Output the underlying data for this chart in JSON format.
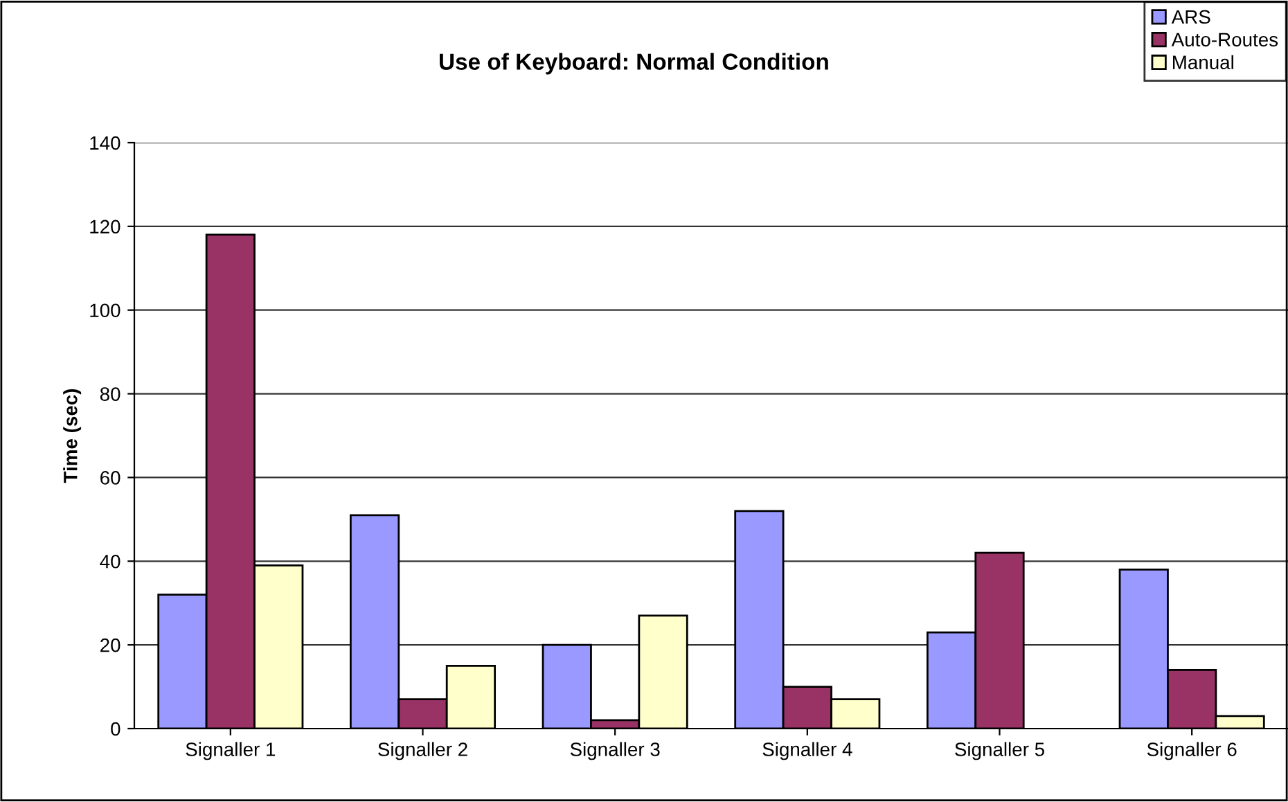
{
  "chart_data": {
    "type": "bar",
    "title": "Use of Keyboard: Normal Condition",
    "ylabel": "Time (sec)",
    "categories": [
      "Signaller 1",
      "Signaller 2",
      "Signaller 3",
      "Signaller 4",
      "Signaller 5",
      "Signaller 6"
    ],
    "series": [
      {
        "name": "ARS",
        "color": "#9999ff",
        "values": [
          32,
          51,
          20,
          52,
          23,
          38
        ]
      },
      {
        "name": "Auto-Routes",
        "color": "#993366",
        "values": [
          118,
          7,
          2,
          10,
          42,
          14
        ]
      },
      {
        "name": "Manual",
        "color": "#ffffcc",
        "values": [
          39,
          15,
          27,
          7,
          null,
          3
        ]
      }
    ],
    "ylim": [
      0,
      140
    ],
    "yticks": [
      0,
      20,
      40,
      60,
      80,
      100,
      120,
      140
    ],
    "grid": "y",
    "legend": "top right"
  }
}
